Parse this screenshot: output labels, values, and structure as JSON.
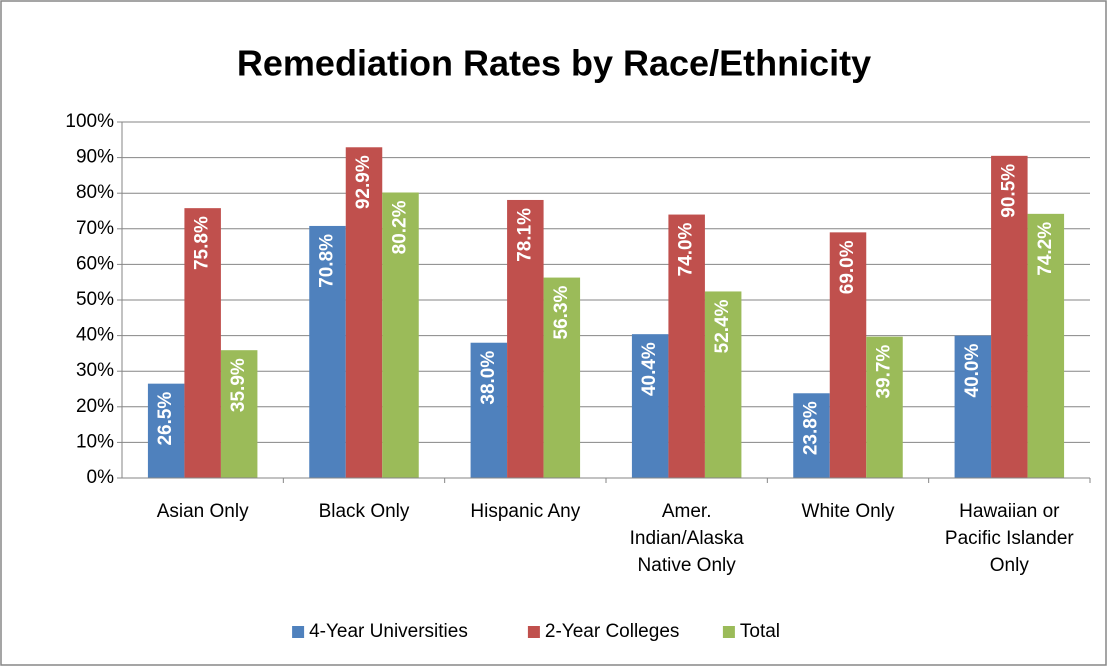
{
  "chart_data": {
    "type": "bar",
    "title": "Remediation Rates by Race/Ethnicity",
    "categories": [
      "Asian Only",
      "Black Only",
      "Hispanic Any",
      "Amer. Indian/Alaska Native Only",
      "White Only",
      "Hawaiian or Pacific Islander Only"
    ],
    "series": [
      {
        "name": "4-Year Universities",
        "color": "#4f81bd",
        "values": [
          26.5,
          70.8,
          38.0,
          40.4,
          23.8,
          40.0
        ],
        "value_labels": [
          "26.5%",
          "70.8%",
          "38.0%",
          "40.4%",
          "23.8%",
          "40.0%"
        ]
      },
      {
        "name": "2-Year Colleges",
        "color": "#c0504d",
        "values": [
          75.8,
          92.9,
          78.1,
          74.0,
          69.0,
          90.5
        ],
        "value_labels": [
          "75.8%",
          "92.9%",
          "78.1%",
          "74.0%",
          "69.0%",
          "90.5%"
        ]
      },
      {
        "name": "Total",
        "color": "#9bbb59",
        "values": [
          35.9,
          80.2,
          56.3,
          52.4,
          39.7,
          74.2
        ],
        "value_labels": [
          "35.9%",
          "80.2%",
          "56.3%",
          "52.4%",
          "39.7%",
          "74.2%"
        ]
      }
    ],
    "ylim": [
      0,
      100
    ],
    "yticks": [
      {
        "value": 0,
        "label": "0%"
      },
      {
        "value": 10,
        "label": "10%"
      },
      {
        "value": 20,
        "label": "20%"
      },
      {
        "value": 30,
        "label": "30%"
      },
      {
        "value": 40,
        "label": "40%"
      },
      {
        "value": 50,
        "label": "50%"
      },
      {
        "value": 60,
        "label": "60%"
      },
      {
        "value": 70,
        "label": "70%"
      },
      {
        "value": 80,
        "label": "80%"
      },
      {
        "value": 90,
        "label": "90%"
      },
      {
        "value": 100,
        "label": "100%"
      }
    ],
    "grid": true,
    "legend": "bottom"
  }
}
